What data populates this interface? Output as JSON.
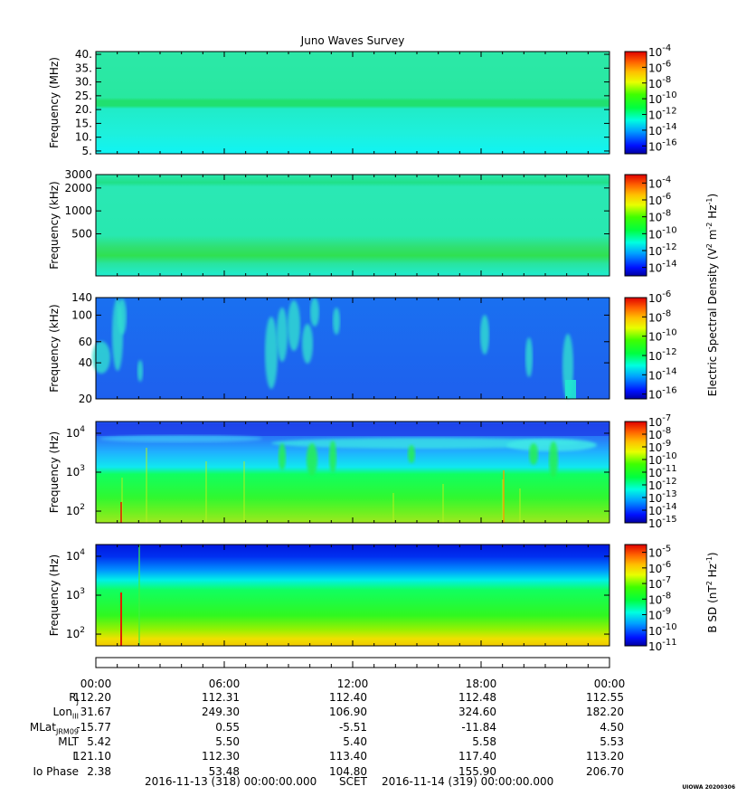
{
  "chart_data": {
    "type": "heatmap",
    "title": "Juno Waves Survey",
    "time_axis": {
      "start": "2016-11-13 00:00:00",
      "end": "2016-11-14 00:00:00",
      "tick_labels": [
        "00:00",
        "06:00",
        "12:00",
        "18:00",
        "00:00"
      ]
    },
    "panels": [
      {
        "id": "p1",
        "ylabel": "Frequency (MHz)",
        "yscale": "linear",
        "ylim": [
          4,
          41
        ],
        "yticks": [
          {
            "v": 5,
            "label": "5."
          },
          {
            "v": 10,
            "label": "10."
          },
          {
            "v": 15,
            "label": "15."
          },
          {
            "v": 20,
            "label": "20."
          },
          {
            "v": 25,
            "label": "25."
          },
          {
            "v": 30,
            "label": "30."
          },
          {
            "v": 35,
            "label": "35."
          },
          {
            "v": 40,
            "label": "40."
          }
        ],
        "colorbar": {
          "range_exp": [
            -17,
            -4
          ],
          "tick_exps": [
            -4,
            -6,
            -8,
            -10,
            -12,
            -14,
            -16
          ]
        }
      },
      {
        "id": "p2",
        "ylabel": "Frequency (kHz)",
        "yscale": "log",
        "ylim": [
          140,
          3000
        ],
        "yticks": [
          {
            "v": 500,
            "label": "500"
          },
          {
            "v": 1000,
            "label": "1000"
          },
          {
            "v": 2000,
            "label": "2000"
          },
          {
            "v": 3000,
            "label": "3000"
          }
        ],
        "colorbar": {
          "range_exp": [
            -15,
            -3
          ],
          "tick_exps": [
            -4,
            -6,
            -8,
            -10,
            -12,
            -14
          ]
        }
      },
      {
        "id": "p3",
        "ylabel": "Frequency (kHz)",
        "yscale": "log",
        "ylim": [
          20,
          140
        ],
        "yticks": [
          {
            "v": 20,
            "label": "20"
          },
          {
            "v": 40,
            "label": "40"
          },
          {
            "v": 60,
            "label": "60"
          },
          {
            "v": 100,
            "label": "100"
          },
          {
            "v": 140,
            "label": "140"
          }
        ],
        "colorbar": {
          "range_exp": [
            -16.5,
            -6
          ],
          "tick_exps": [
            -6,
            -8,
            -10,
            -12,
            -14,
            -16
          ]
        }
      },
      {
        "id": "p4",
        "ylabel": "Frequency (Hz)",
        "yscale": "log",
        "ylim": [
          50,
          20000
        ],
        "yticks": [
          {
            "v": 100,
            "label": "10",
            "exp": "2"
          },
          {
            "v": 1000,
            "label": "10",
            "exp": "3"
          },
          {
            "v": 10000,
            "label": "10",
            "exp": "4"
          }
        ],
        "colorbar": {
          "range_exp": [
            -15,
            -7
          ],
          "tick_exps": [
            -7,
            -8,
            -9,
            -10,
            -11,
            -12,
            -13,
            -14,
            -15
          ]
        }
      },
      {
        "id": "p5",
        "ylabel": "Frequency (Hz)",
        "yscale": "log",
        "ylim": [
          50,
          20000
        ],
        "yticks": [
          {
            "v": 100,
            "label": "10",
            "exp": "2"
          },
          {
            "v": 1000,
            "label": "10",
            "exp": "3"
          },
          {
            "v": 10000,
            "label": "10",
            "exp": "4"
          }
        ],
        "colorbar": {
          "range_exp": [
            -11,
            -4.5
          ],
          "tick_exps": [
            -5,
            -6,
            -7,
            -8,
            -9,
            -10,
            -11
          ]
        }
      }
    ],
    "colorbar_labels": {
      "electric": "Electric Spectral Density (V² m⁻² Hz⁻¹)",
      "electric_parts": {
        "base": "Electric Spectral Density (V",
        "sup1": "2",
        "mid1": " m",
        "sup2": "-2",
        "mid2": " Hz",
        "sup3": "-1",
        "end": ")"
      },
      "magnetic_parts": {
        "base": "B SD (nT",
        "sup1": "2",
        "mid": " Hz",
        "sup2": "-1",
        "end": ")"
      }
    },
    "ephemeris": {
      "rows": [
        {
          "label": "R",
          "sub": "J",
          "values": [
            "112.20",
            "112.31",
            "112.40",
            "112.48",
            "112.55"
          ]
        },
        {
          "label": "Lon",
          "sub": "III",
          "values": [
            "31.67",
            "249.30",
            "106.90",
            "324.60",
            "182.20"
          ]
        },
        {
          "label": "MLat",
          "sub": "JRM09",
          "values": [
            "-15.77",
            "0.55",
            "-5.51",
            "-11.84",
            "4.50"
          ]
        },
        {
          "label": "MLT",
          "sub": "",
          "values": [
            "5.42",
            "5.50",
            "5.40",
            "5.58",
            "5.53"
          ]
        },
        {
          "label": "L",
          "sub": "",
          "values": [
            "121.10",
            "112.30",
            "113.40",
            "117.40",
            "113.20"
          ]
        },
        {
          "label": "Io Phase",
          "sub": "",
          "values": [
            "2.38",
            "53.48",
            "104.80",
            "155.90",
            "206.70"
          ]
        }
      ]
    },
    "footer": {
      "start": "2016-11-13 (318) 00:00:00.000",
      "mid": "SCET",
      "end": "2016-11-14 (319) 00:00:00.000"
    },
    "stamp": "UIOWA 20200306"
  }
}
